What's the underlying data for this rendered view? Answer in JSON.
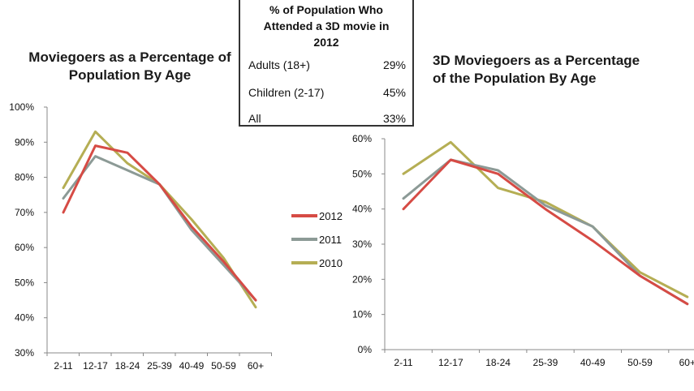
{
  "stats_box": {
    "title_line1": "% of Population Who",
    "title_line2": "Attended a 3D movie in",
    "title_line3": "2012",
    "rows": [
      {
        "label": "Adults (18+)",
        "value": "29%"
      },
      {
        "label": "Children (2-17)",
        "value": "45%"
      },
      {
        "label": "All",
        "value": "33%"
      }
    ]
  },
  "legend": {
    "items": [
      {
        "label": "2012",
        "color": "#d64b45"
      },
      {
        "label": "2011",
        "color": "#8c9a96"
      },
      {
        "label": "2010",
        "color": "#b5ae54"
      }
    ]
  },
  "chart_data": [
    {
      "type": "line",
      "title_line1": "Moviegoers as a Percentage of",
      "title_line2": "Population By Age",
      "categories": [
        "2-11",
        "12-17",
        "18-24",
        "25-39",
        "40-49",
        "50-59",
        "60+"
      ],
      "ylim": [
        30,
        100
      ],
      "yticks": [
        "30%",
        "40%",
        "50%",
        "60%",
        "70%",
        "80%",
        "90%",
        "100%"
      ],
      "grid": false,
      "series": [
        {
          "name": "2012",
          "color": "#d64b45",
          "values": [
            70,
            89,
            87,
            78,
            66,
            56,
            45
          ]
        },
        {
          "name": "2011",
          "color": "#8c9a96",
          "values": [
            74,
            86,
            82,
            78,
            65,
            55,
            45
          ]
        },
        {
          "name": "2010",
          "color": "#b5ae54",
          "values": [
            77,
            93,
            84,
            78,
            68,
            57,
            43
          ]
        }
      ]
    },
    {
      "type": "line",
      "title_line1": "3D Moviegoers as a Percentage",
      "title_line2": "of the Population By Age",
      "categories": [
        "2-11",
        "12-17",
        "18-24",
        "25-39",
        "40-49",
        "50-59",
        "60+"
      ],
      "ylim": [
        0,
        60
      ],
      "yticks": [
        "0%",
        "10%",
        "20%",
        "30%",
        "40%",
        "50%",
        "60%"
      ],
      "grid": false,
      "series": [
        {
          "name": "2012",
          "color": "#d64b45",
          "values": [
            40,
            54,
            50,
            40,
            31,
            21,
            13
          ]
        },
        {
          "name": "2011",
          "color": "#8c9a96",
          "values": [
            43,
            54,
            51,
            41,
            35,
            21,
            13
          ]
        },
        {
          "name": "2010",
          "color": "#b5ae54",
          "values": [
            50,
            59,
            46,
            42,
            35,
            22,
            15
          ]
        }
      ]
    }
  ]
}
